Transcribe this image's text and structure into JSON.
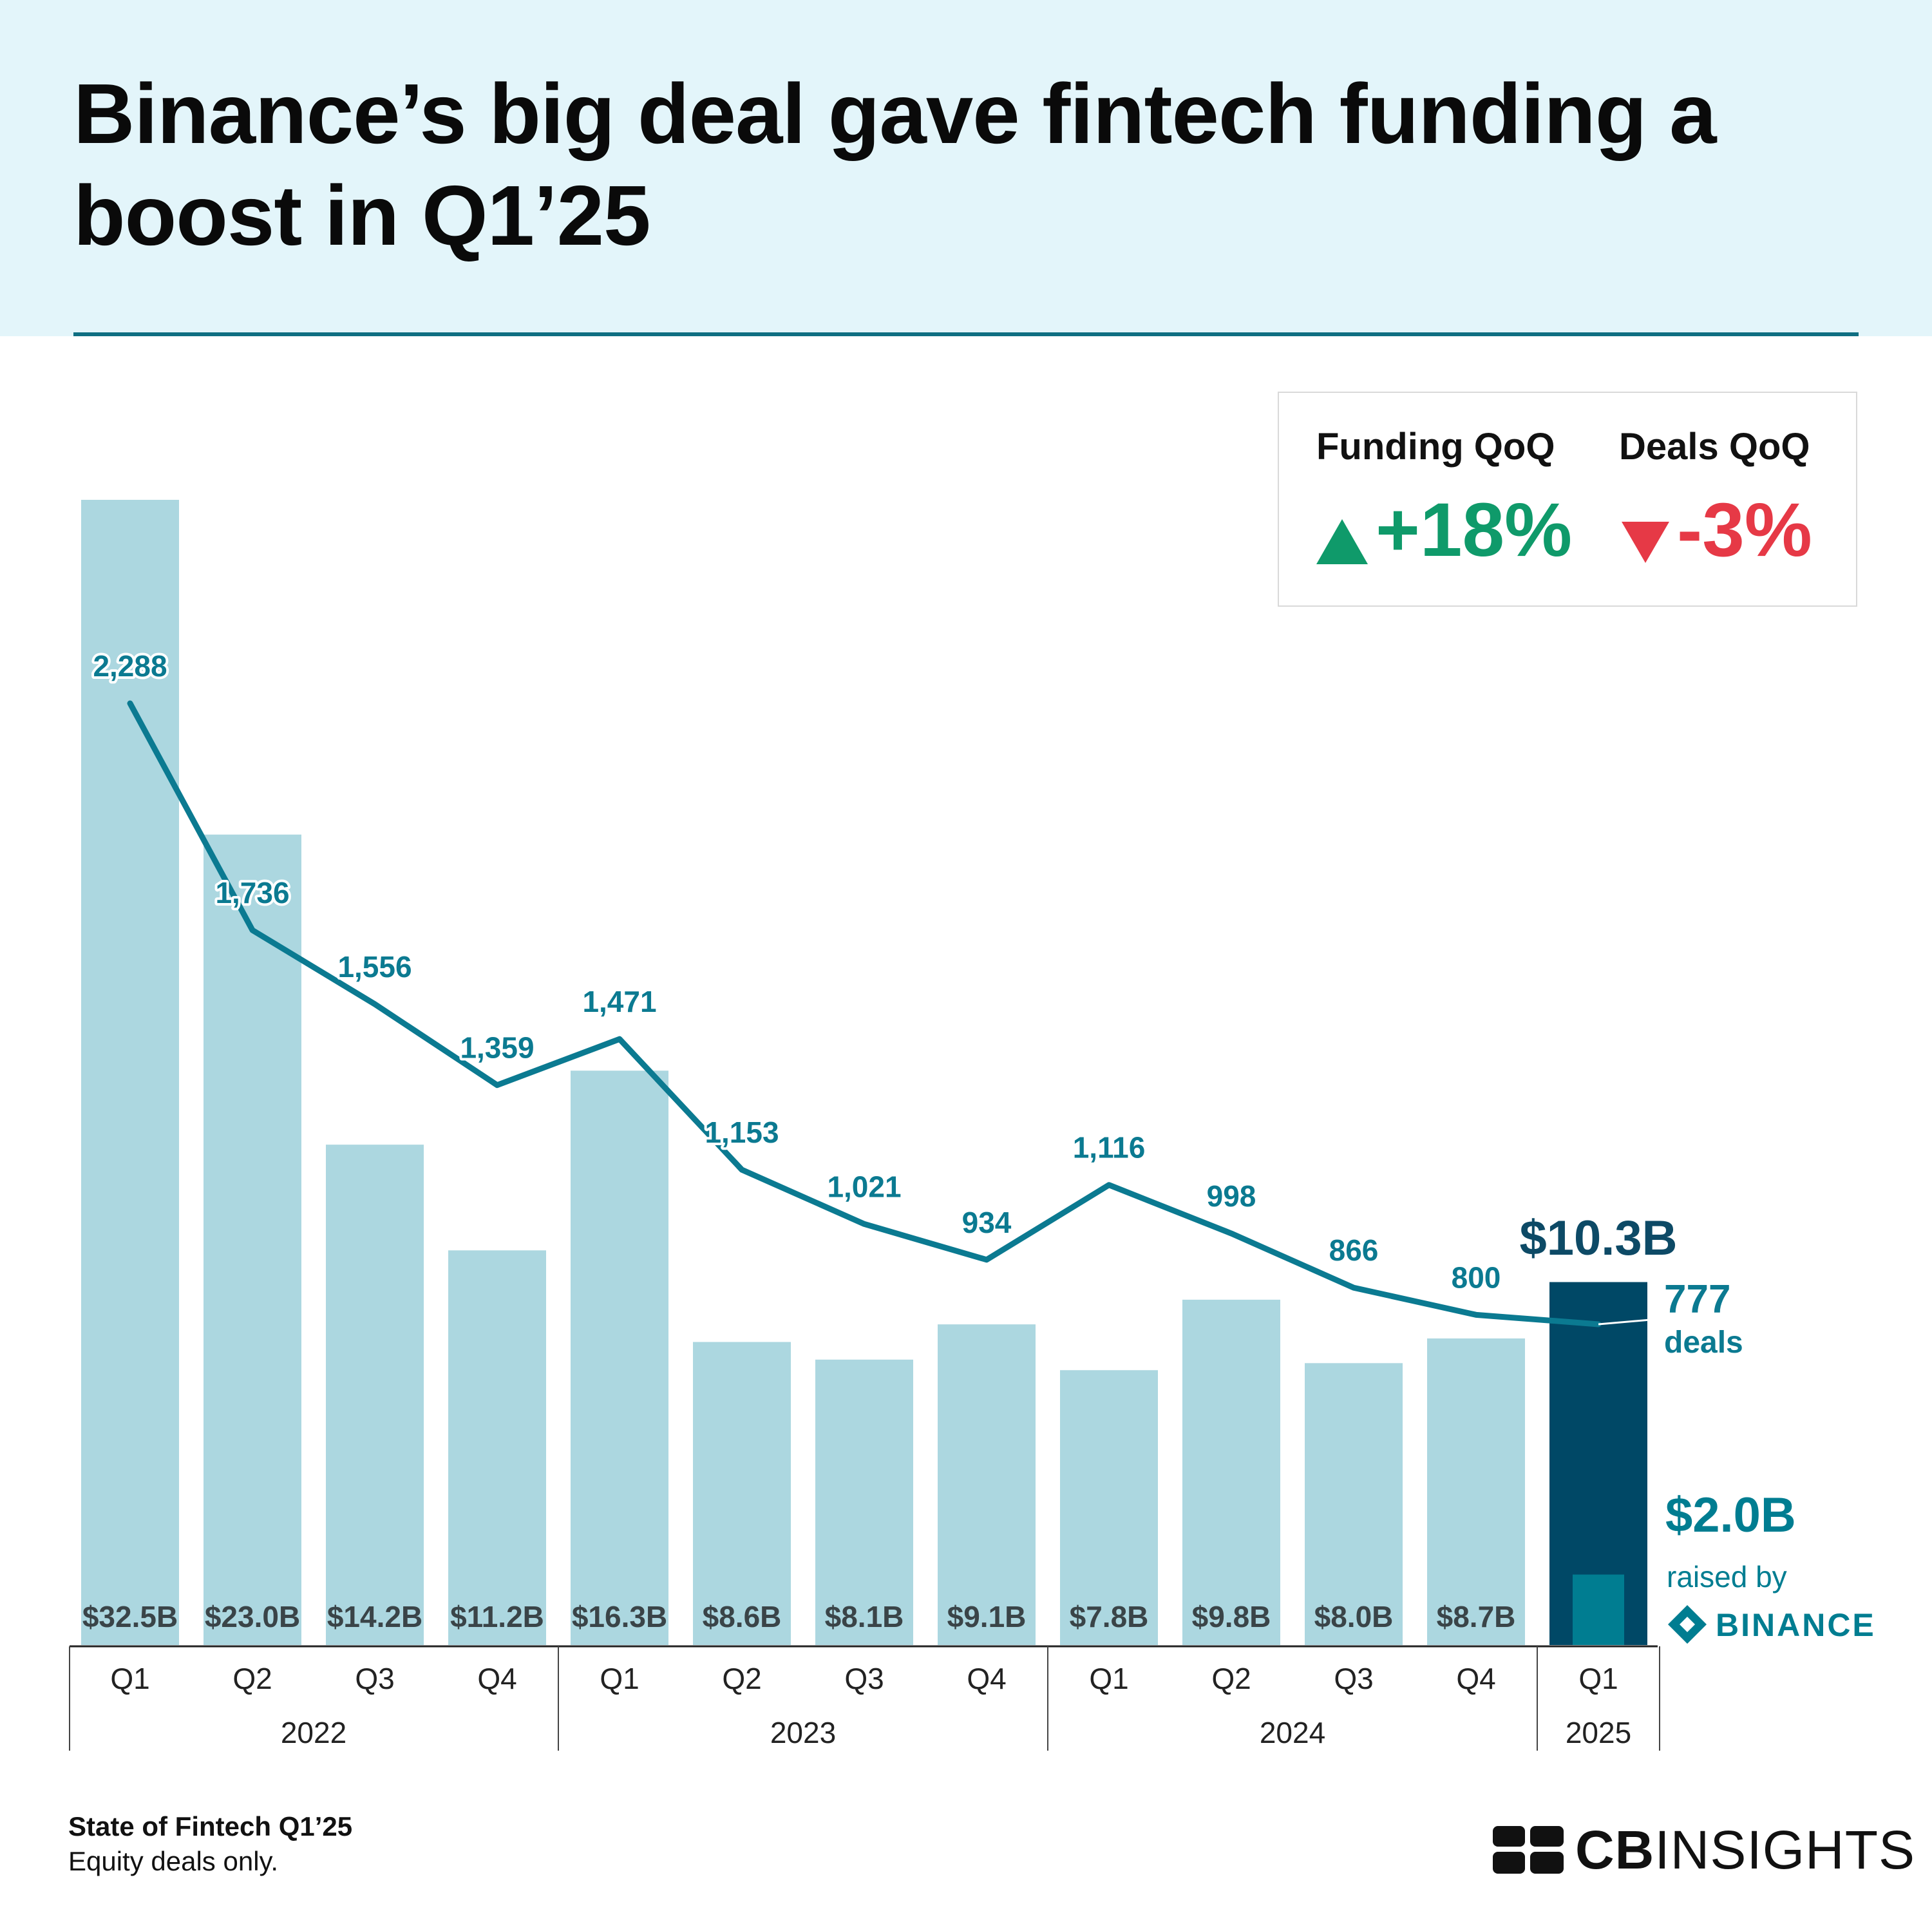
{
  "title": "Binance’s big deal gave fintech funding a boost in Q1’25",
  "qoq": {
    "funding": {
      "label": "Funding QoQ",
      "value": "+18%",
      "color": "#0f9a6a"
    },
    "deals": {
      "label": "Deals QoQ",
      "value": "-3%",
      "color": "#e63946"
    }
  },
  "colors": {
    "bar": "#acd7e0",
    "bar_highlight": "#004866",
    "binance_bar": "#007d91",
    "line": "#0b7a91",
    "header_bg": "#e3f5fa",
    "rule": "#0f6f82"
  },
  "chart_data": {
    "type": "bar",
    "title": "Binance’s big deal gave fintech funding a boost in Q1’25",
    "categories": [
      "Q1",
      "Q2",
      "Q3",
      "Q4",
      "Q1",
      "Q2",
      "Q3",
      "Q4",
      "Q1",
      "Q2",
      "Q3",
      "Q4",
      "Q1"
    ],
    "years": [
      {
        "label": "2022",
        "count": 4
      },
      {
        "label": "2023",
        "count": 4
      },
      {
        "label": "2024",
        "count": 4
      },
      {
        "label": "2025",
        "count": 1
      }
    ],
    "series": [
      {
        "name": "Funding ($B)",
        "type": "bar",
        "values": [
          32.5,
          23.0,
          14.2,
          11.2,
          16.3,
          8.6,
          8.1,
          9.1,
          7.8,
          9.8,
          8.0,
          8.7,
          10.3
        ],
        "labels": [
          "$32.5B",
          "$23.0B",
          "$14.2B",
          "$11.2B",
          "$16.3B",
          "$8.6B",
          "$8.1B",
          "$9.1B",
          "$7.8B",
          "$9.8B",
          "$8.0B",
          "$8.7B",
          "$10.3B"
        ]
      },
      {
        "name": "Deals",
        "type": "line",
        "values": [
          2288,
          1736,
          1556,
          1359,
          1471,
          1153,
          1021,
          934,
          1116,
          998,
          866,
          800,
          777
        ],
        "labels": [
          "2,288",
          "1,736",
          "1,556",
          "1,359",
          "1,471",
          "1,153",
          "1,021",
          "934",
          "1,116",
          "998",
          "866",
          "800",
          "777"
        ]
      }
    ],
    "highlight": {
      "funding_label": "$10.3B",
      "deals_value": "777",
      "deals_unit": "deals",
      "binance_value": 2.0,
      "binance_label": "$2.0B",
      "binance_text": "raised by",
      "binance_brand": "BINANCE"
    },
    "ylim_funding": [
      0,
      32.5
    ],
    "grid": false
  },
  "footer": {
    "source": "State of Fintech Q1’25",
    "note": "Equity deals only.",
    "brand_bold": "CB",
    "brand_light": "INSIGHTS"
  }
}
